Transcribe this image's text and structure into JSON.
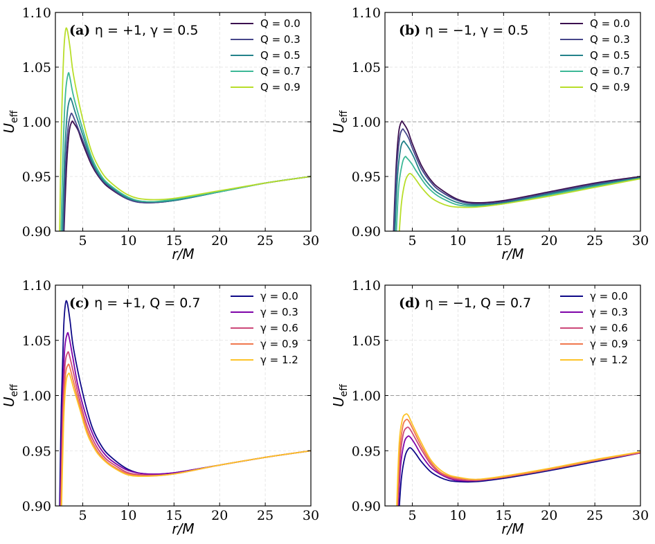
{
  "chart_data": [
    {
      "type": "line",
      "panel_label": "(a)",
      "title": "η = +1, γ = 0.5",
      "xlabel": "r/M",
      "ylabel": "U_eff",
      "xlim": [
        2,
        30
      ],
      "ylim": [
        0.9,
        1.1
      ],
      "xticks": [
        5,
        10,
        15,
        20,
        25,
        30
      ],
      "yticks": [
        "0.90",
        "0.95",
        "1.00",
        "1.05",
        "1.10"
      ],
      "reference_line": 1.0,
      "legend_position": "top-right",
      "series": [
        {
          "name": "Q = 0.0",
          "color": "#3b0f4f",
          "x": [
            2.9,
            3.2,
            3.5,
            3.8,
            4.0,
            4.5,
            5,
            6,
            7,
            8,
            10,
            12,
            15,
            20,
            25,
            30
          ],
          "y": [
            0.89,
            0.955,
            0.99,
            1.0,
            0.999,
            0.992,
            0.98,
            0.96,
            0.947,
            0.939,
            0.929,
            0.926,
            0.928,
            0.936,
            0.944,
            0.95
          ]
        },
        {
          "name": "Q = 0.3",
          "color": "#46468a",
          "x": [
            2.85,
            3.1,
            3.4,
            3.7,
            3.9,
            4.3,
            5,
            6,
            7,
            8,
            10,
            12,
            15,
            20,
            25,
            30
          ],
          "y": [
            0.89,
            0.958,
            0.995,
            1.007,
            1.006,
            0.998,
            0.983,
            0.962,
            0.948,
            0.94,
            0.929,
            0.926,
            0.928,
            0.936,
            0.944,
            0.95
          ]
        },
        {
          "name": "Q = 0.5",
          "color": "#23828a",
          "x": [
            2.75,
            3.0,
            3.3,
            3.6,
            3.8,
            4.2,
            5,
            6,
            7,
            8,
            10,
            12,
            15,
            20,
            25,
            30
          ],
          "y": [
            0.89,
            0.965,
            1.008,
            1.021,
            1.019,
            1.008,
            0.988,
            0.964,
            0.949,
            0.941,
            0.93,
            0.927,
            0.928,
            0.936,
            0.944,
            0.95
          ]
        },
        {
          "name": "Q = 0.7",
          "color": "#3cb896",
          "x": [
            2.6,
            2.85,
            3.1,
            3.4,
            3.6,
            4.0,
            5,
            6,
            7,
            8,
            10,
            12,
            15,
            20,
            25,
            30
          ],
          "y": [
            0.89,
            0.975,
            1.025,
            1.044,
            1.04,
            1.023,
            0.993,
            0.967,
            0.951,
            0.942,
            0.931,
            0.927,
            0.929,
            0.936,
            0.944,
            0.95
          ]
        },
        {
          "name": "Q = 0.9",
          "color": "#b8de29",
          "x": [
            2.45,
            2.65,
            2.9,
            3.1,
            3.3,
            3.6,
            4.0,
            5,
            6,
            7,
            8,
            10,
            12,
            15,
            20,
            25,
            30
          ],
          "y": [
            0.89,
            0.99,
            1.06,
            1.083,
            1.084,
            1.068,
            1.042,
            1.002,
            0.972,
            0.955,
            0.945,
            0.933,
            0.929,
            0.93,
            0.937,
            0.944,
            0.95
          ]
        }
      ]
    },
    {
      "type": "line",
      "panel_label": "(b)",
      "title": "η = −1, γ = 0.5",
      "xlabel": "r/M",
      "ylabel": "U_eff",
      "xlim": [
        2,
        30
      ],
      "ylim": [
        0.9,
        1.1
      ],
      "xticks": [
        5,
        10,
        15,
        20,
        25,
        30
      ],
      "yticks": [
        "0.90",
        "0.95",
        "1.00",
        "1.05",
        "1.10"
      ],
      "reference_line": 1.0,
      "legend_position": "top-right",
      "series": [
        {
          "name": "Q = 0.0",
          "color": "#3b0f4f",
          "x": [
            2.9,
            3.2,
            3.5,
            3.8,
            4.0,
            4.5,
            5,
            6,
            7,
            8,
            10,
            12,
            15,
            20,
            25,
            30
          ],
          "y": [
            0.89,
            0.955,
            0.99,
            1.0,
            0.999,
            0.992,
            0.98,
            0.96,
            0.947,
            0.939,
            0.929,
            0.926,
            0.928,
            0.936,
            0.944,
            0.95
          ]
        },
        {
          "name": "Q = 0.3",
          "color": "#46468a",
          "x": [
            2.95,
            3.25,
            3.6,
            3.9,
            4.1,
            4.6,
            5,
            6,
            7,
            8,
            10,
            12,
            15,
            20,
            25,
            30
          ],
          "y": [
            0.89,
            0.952,
            0.985,
            0.993,
            0.992,
            0.985,
            0.976,
            0.957,
            0.945,
            0.937,
            0.928,
            0.925,
            0.927,
            0.935,
            0.943,
            0.949
          ]
        },
        {
          "name": "Q = 0.5",
          "color": "#23828a",
          "x": [
            3.05,
            3.35,
            3.7,
            4.0,
            4.2,
            4.7,
            5.2,
            6,
            7,
            8,
            10,
            12,
            15,
            20,
            25,
            30
          ],
          "y": [
            0.89,
            0.947,
            0.975,
            0.982,
            0.981,
            0.975,
            0.967,
            0.952,
            0.941,
            0.934,
            0.926,
            0.924,
            0.926,
            0.934,
            0.942,
            0.949
          ]
        },
        {
          "name": "Q = 0.7",
          "color": "#3cb896",
          "x": [
            3.2,
            3.5,
            3.9,
            4.2,
            4.4,
            4.9,
            5.5,
            6.5,
            7.5,
            8.5,
            10,
            12,
            15,
            20,
            25,
            30
          ],
          "y": [
            0.89,
            0.94,
            0.962,
            0.968,
            0.967,
            0.962,
            0.954,
            0.942,
            0.934,
            0.929,
            0.924,
            0.923,
            0.925,
            0.933,
            0.941,
            0.948
          ]
        },
        {
          "name": "Q = 0.9",
          "color": "#b8de29",
          "x": [
            3.5,
            3.8,
            4.2,
            4.6,
            4.9,
            5.4,
            6,
            7,
            8,
            9,
            10,
            12,
            15,
            20,
            25,
            30
          ],
          "y": [
            0.89,
            0.925,
            0.945,
            0.952,
            0.952,
            0.947,
            0.94,
            0.931,
            0.926,
            0.923,
            0.922,
            0.922,
            0.925,
            0.932,
            0.94,
            0.948
          ]
        }
      ]
    },
    {
      "type": "line",
      "panel_label": "(c)",
      "title": "η = +1, Q = 0.7",
      "xlabel": "r/M",
      "ylabel": "U_eff",
      "xlim": [
        2,
        30
      ],
      "ylim": [
        0.9,
        1.1
      ],
      "xticks": [
        5,
        10,
        15,
        20,
        25,
        30
      ],
      "yticks": [
        "0.90",
        "0.95",
        "1.00",
        "1.05",
        "1.10"
      ],
      "reference_line": 1.0,
      "legend_position": "top-right",
      "series": [
        {
          "name": "γ = 0.0",
          "color": "#0d0887",
          "x": [
            2.45,
            2.65,
            2.9,
            3.1,
            3.3,
            3.6,
            4.0,
            5,
            6,
            7,
            8,
            10,
            12,
            15,
            20,
            25,
            30
          ],
          "y": [
            0.89,
            0.99,
            1.06,
            1.083,
            1.084,
            1.068,
            1.042,
            1.002,
            0.972,
            0.955,
            0.945,
            0.933,
            0.929,
            0.93,
            0.937,
            0.944,
            0.95
          ]
        },
        {
          "name": "γ = 0.3",
          "color": "#7e03a8",
          "x": [
            2.5,
            2.75,
            3.0,
            3.3,
            3.5,
            3.9,
            4.5,
            5.5,
            6.5,
            7.5,
            8.5,
            10,
            12,
            15,
            20,
            25,
            30
          ],
          "y": [
            0.89,
            0.985,
            1.04,
            1.056,
            1.053,
            1.035,
            1.008,
            0.978,
            0.958,
            0.946,
            0.939,
            0.932,
            0.929,
            0.93,
            0.937,
            0.944,
            0.95
          ]
        },
        {
          "name": "γ = 0.6",
          "color": "#cc4778",
          "x": [
            2.55,
            2.8,
            3.05,
            3.35,
            3.55,
            4.0,
            4.6,
            5.5,
            6.5,
            7.5,
            8.5,
            10,
            12,
            15,
            20,
            25,
            30
          ],
          "y": [
            0.89,
            0.982,
            1.027,
            1.039,
            1.036,
            1.02,
            0.998,
            0.972,
            0.954,
            0.943,
            0.937,
            0.93,
            0.928,
            0.929,
            0.937,
            0.944,
            0.95
          ]
        },
        {
          "name": "γ = 0.9",
          "color": "#f0774d",
          "x": [
            2.6,
            2.85,
            3.1,
            3.4,
            3.6,
            4.0,
            4.6,
            5.5,
            6.5,
            7.5,
            8.5,
            10,
            12,
            15,
            20,
            25,
            30
          ],
          "y": [
            0.89,
            0.978,
            1.018,
            1.028,
            1.025,
            1.012,
            0.993,
            0.968,
            0.951,
            0.941,
            0.935,
            0.929,
            0.927,
            0.929,
            0.937,
            0.944,
            0.95
          ]
        },
        {
          "name": "γ = 1.2",
          "color": "#fdc328",
          "x": [
            2.65,
            2.9,
            3.15,
            3.45,
            3.65,
            4.05,
            4.7,
            5.5,
            6.5,
            7.5,
            8.5,
            10,
            12,
            15,
            20,
            25,
            30
          ],
          "y": [
            0.89,
            0.975,
            1.011,
            1.02,
            1.017,
            1.005,
            0.987,
            0.965,
            0.949,
            0.94,
            0.934,
            0.928,
            0.927,
            0.929,
            0.937,
            0.944,
            0.95
          ]
        }
      ]
    },
    {
      "type": "line",
      "panel_label": "(d)",
      "title": "η = −1, Q = 0.7",
      "xlabel": "r/M",
      "ylabel": "U_eff",
      "xlim": [
        2,
        30
      ],
      "ylim": [
        0.9,
        1.1
      ],
      "xticks": [
        5,
        10,
        15,
        20,
        25,
        30
      ],
      "yticks": [
        "0.90",
        "0.95",
        "1.00",
        "1.05",
        "1.10"
      ],
      "reference_line": 1.0,
      "legend_position": "top-right",
      "series": [
        {
          "name": "γ = 0.0",
          "color": "#0d0887",
          "x": [
            3.5,
            3.8,
            4.2,
            4.6,
            4.9,
            5.4,
            6,
            7,
            8,
            9,
            10,
            12,
            15,
            20,
            25,
            30
          ],
          "y": [
            0.89,
            0.925,
            0.945,
            0.952,
            0.952,
            0.947,
            0.94,
            0.931,
            0.926,
            0.923,
            0.922,
            0.922,
            0.925,
            0.932,
            0.94,
            0.948
          ]
        },
        {
          "name": "γ = 0.3",
          "color": "#7e03a8",
          "x": [
            3.4,
            3.7,
            4.1,
            4.5,
            4.8,
            5.3,
            6,
            7,
            8,
            9,
            10,
            12,
            15,
            20,
            25,
            30
          ],
          "y": [
            0.89,
            0.935,
            0.957,
            0.963,
            0.962,
            0.956,
            0.946,
            0.935,
            0.929,
            0.925,
            0.923,
            0.923,
            0.926,
            0.933,
            0.941,
            0.948
          ]
        },
        {
          "name": "γ = 0.6",
          "color": "#cc4778",
          "x": [
            3.35,
            3.65,
            4.0,
            4.4,
            4.7,
            5.2,
            6,
            7,
            8,
            9,
            10,
            12,
            15,
            20,
            25,
            30
          ],
          "y": [
            0.89,
            0.942,
            0.965,
            0.971,
            0.97,
            0.963,
            0.951,
            0.938,
            0.93,
            0.926,
            0.924,
            0.923,
            0.926,
            0.933,
            0.941,
            0.948
          ]
        },
        {
          "name": "γ = 0.9",
          "color": "#f0774d",
          "x": [
            3.3,
            3.6,
            3.95,
            4.3,
            4.6,
            5.1,
            6,
            7,
            8,
            9,
            10,
            12,
            15,
            20,
            25,
            30
          ],
          "y": [
            0.89,
            0.948,
            0.972,
            0.978,
            0.977,
            0.969,
            0.954,
            0.94,
            0.931,
            0.927,
            0.925,
            0.924,
            0.926,
            0.933,
            0.941,
            0.949
          ]
        },
        {
          "name": "γ = 1.2",
          "color": "#fdc328",
          "x": [
            3.25,
            3.55,
            3.9,
            4.25,
            4.55,
            5.0,
            6,
            7,
            8,
            9,
            10,
            12,
            15,
            20,
            25,
            30
          ],
          "y": [
            0.89,
            0.955,
            0.978,
            0.983,
            0.982,
            0.974,
            0.957,
            0.942,
            0.933,
            0.928,
            0.926,
            0.924,
            0.927,
            0.934,
            0.942,
            0.949
          ]
        }
      ]
    }
  ]
}
